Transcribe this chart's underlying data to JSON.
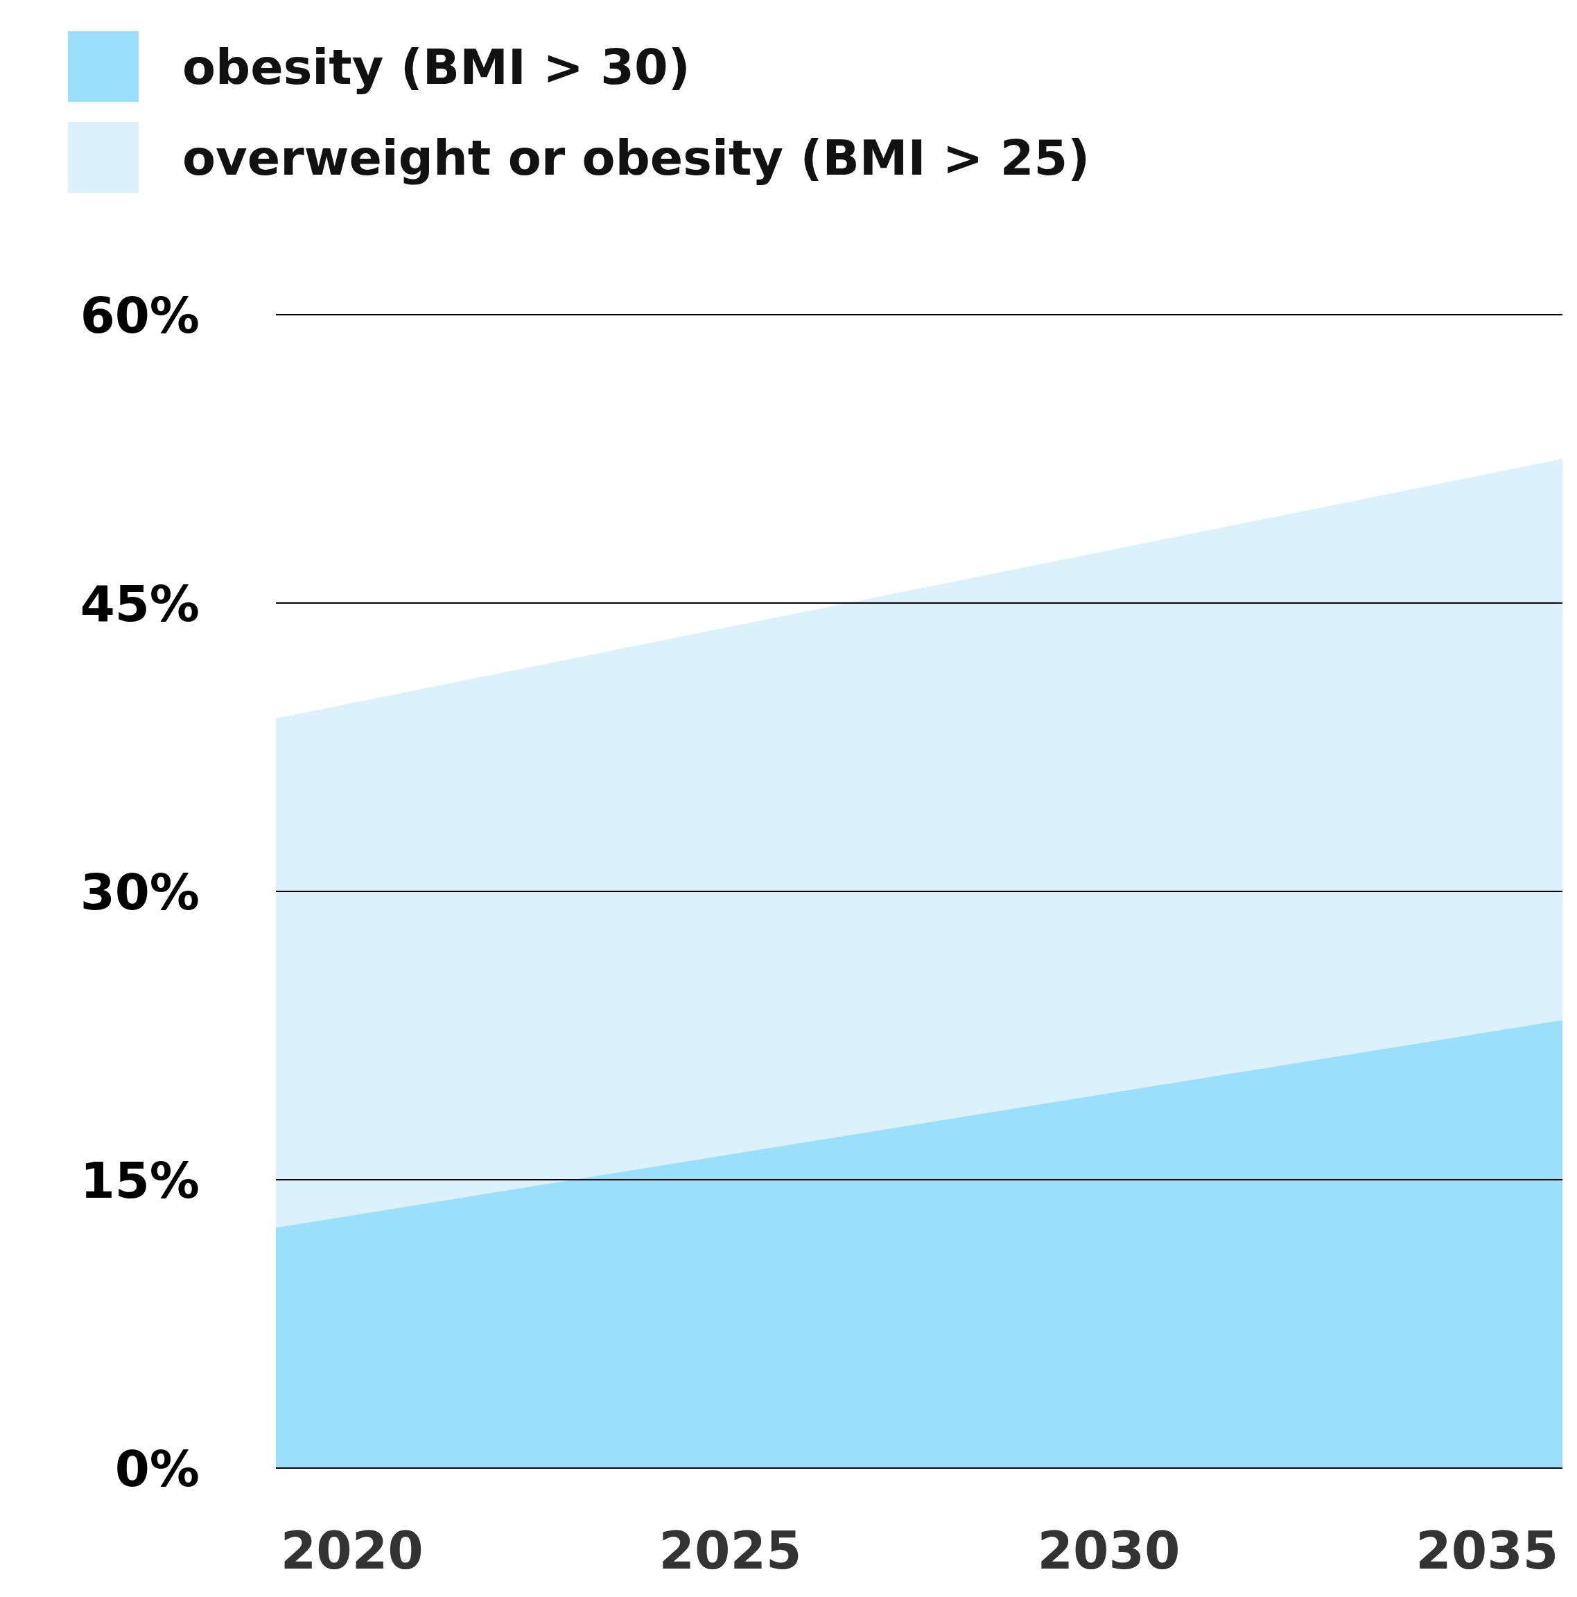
{
  "chart_data": {
    "type": "area",
    "x": [
      2019,
      2036
    ],
    "xlim": [
      2019,
      2036
    ],
    "xticks": [
      2020,
      2025,
      2030,
      2035
    ],
    "ylim": [
      0,
      60
    ],
    "yticks": [
      {
        "value": 0,
        "label": "0%"
      },
      {
        "value": 15,
        "label": "15%"
      },
      {
        "value": 30,
        "label": "30%"
      },
      {
        "value": 45,
        "label": "45%"
      },
      {
        "value": 60,
        "label": "60%"
      }
    ],
    "grid": "y",
    "legend": "top left",
    "series": [
      {
        "name": "overweight or obesity (BMI > 25)",
        "color": "#dbf2fd",
        "values": [
          39,
          52.5
        ]
      },
      {
        "name": "obesity (BMI > 30)",
        "color": "#9bdffd",
        "values": [
          12.5,
          23.3
        ]
      }
    ]
  }
}
